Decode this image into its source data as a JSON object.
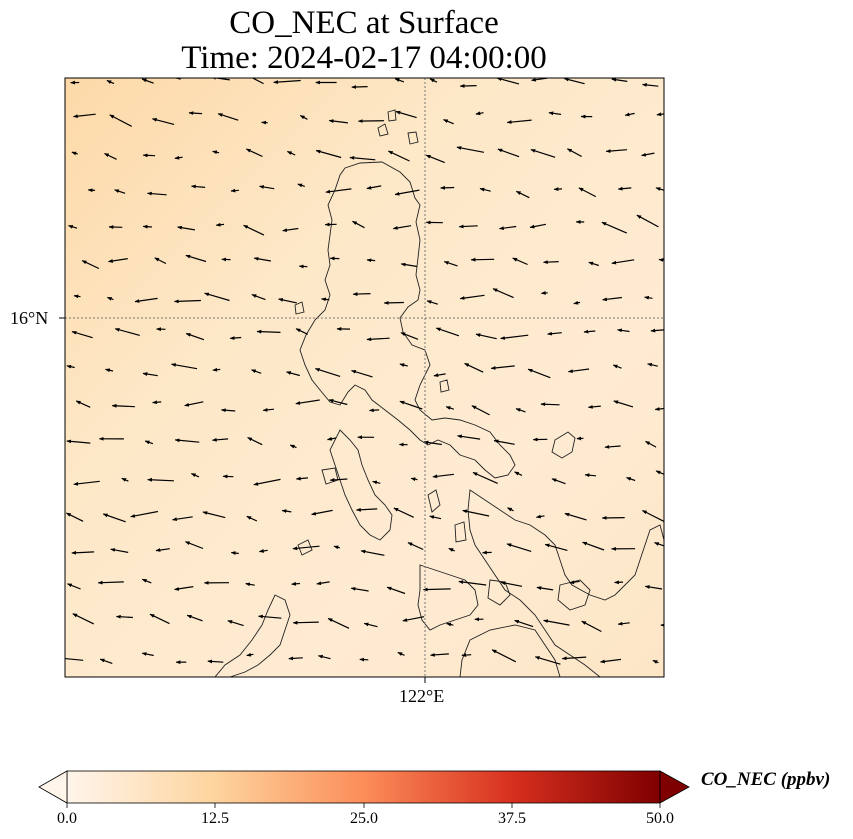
{
  "title": {
    "line1": "CO_NEC at Surface",
    "line2": "Time: 2024-02-17 04:00:00"
  },
  "axes": {
    "lat_tick": "16°N",
    "lon_tick": "122°E"
  },
  "colorbar": {
    "label": "CO_NEC (ppbv)",
    "ticks": [
      "0.0",
      "12.5",
      "25.0",
      "37.5",
      "50.0"
    ],
    "min": 0,
    "max": 50,
    "colors": [
      "#fff5eb",
      "#fdd49e",
      "#fc8d59",
      "#d7301f",
      "#7f0000"
    ]
  },
  "map": {
    "background": "#fde9cc",
    "coastline_color": "#222222",
    "wind_vector_color": "#000000"
  }
}
